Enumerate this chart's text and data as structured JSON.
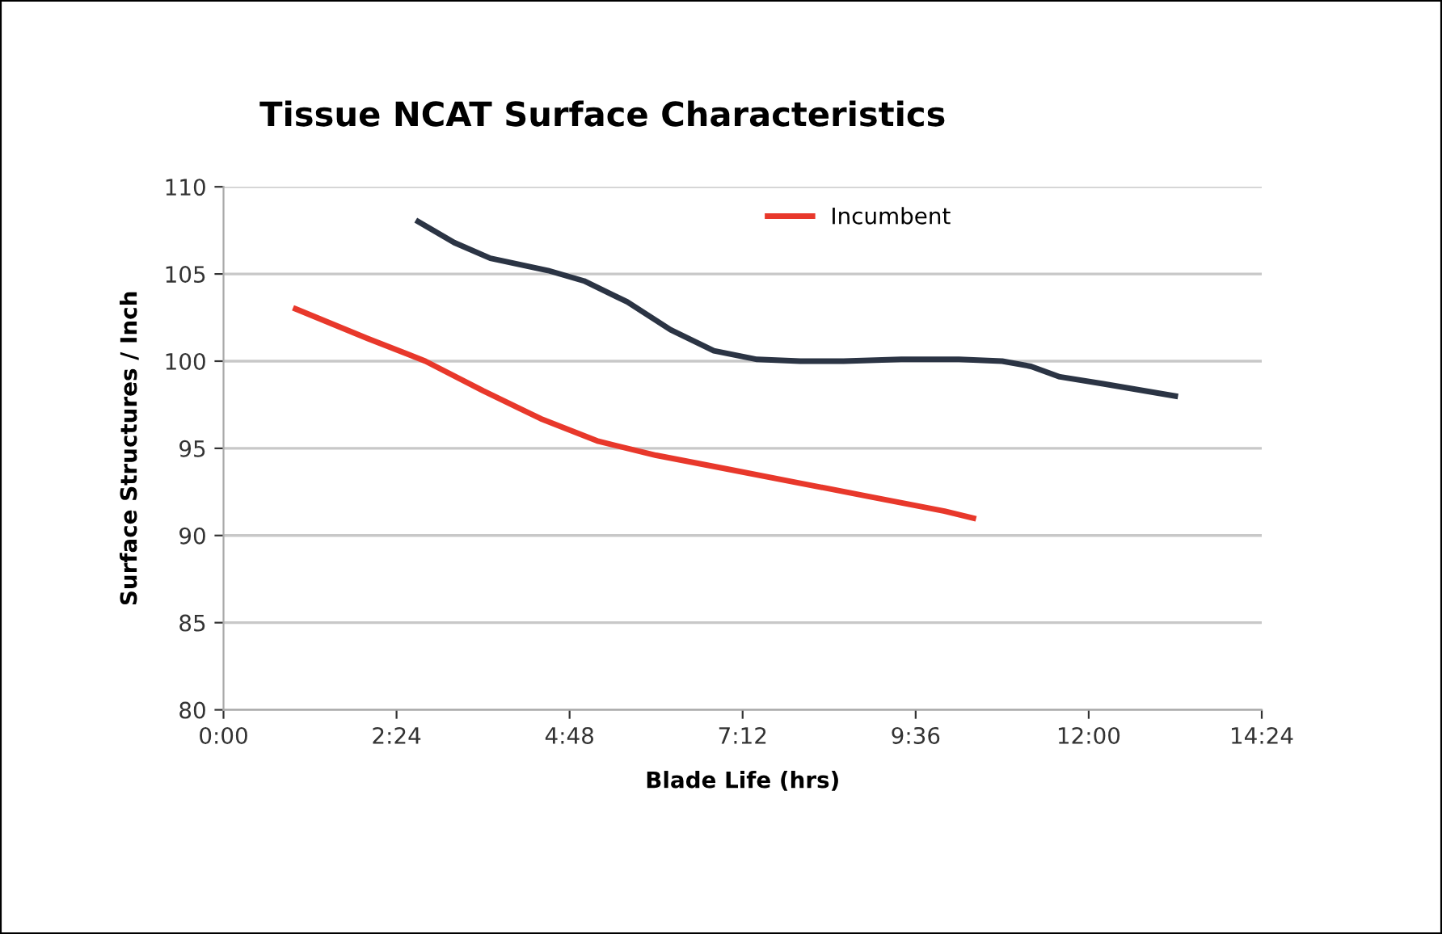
{
  "chart_data": {
    "type": "line",
    "title": "Tissue NCAT Surface Characteristics",
    "xlabel": "Blade Life (hrs)",
    "ylabel": "Surface Structures / Inch",
    "xlim": [
      0,
      14.4
    ],
    "xticks": [
      {
        "value": 0,
        "label": "0:00"
      },
      {
        "value": 2.4,
        "label": "2:24"
      },
      {
        "value": 4.8,
        "label": "4:48"
      },
      {
        "value": 7.2,
        "label": "7:12"
      },
      {
        "value": 9.6,
        "label": "9:36"
      },
      {
        "value": 12,
        "label": "12:00"
      },
      {
        "value": 14.4,
        "label": "14:24"
      }
    ],
    "ylim": [
      80,
      110
    ],
    "yticks": [
      80,
      85,
      90,
      95,
      100,
      105,
      110
    ],
    "grid": "y",
    "legend": "top right",
    "marker": "none",
    "line_style": "solid",
    "series": [
      {
        "name": "Incumbent",
        "color": "#e8382b",
        "x": [
          1.0,
          2.0,
          2.8,
          3.6,
          4.4,
          5.2,
          6.0,
          7.0,
          8.0,
          9.0,
          10.0,
          10.4
        ],
        "values": [
          103,
          101.3,
          100,
          98.3,
          96.7,
          95.4,
          94.6,
          93.8,
          93,
          92.2,
          91.4,
          91
        ]
      },
      {
        "color": "#2b3444",
        "x": [
          2.7,
          3.2,
          3.7,
          4.5,
          5.0,
          5.6,
          6.2,
          6.8,
          7.4,
          8.0,
          8.6,
          9.4,
          10.2,
          10.8,
          11.2,
          11.6,
          12.2,
          13.2
        ],
        "values": [
          108,
          106.8,
          105.9,
          105.2,
          104.6,
          103.4,
          101.8,
          100.6,
          100.1,
          100,
          100,
          100.1,
          100.1,
          100,
          99.7,
          99.1,
          98.7,
          98
        ]
      }
    ]
  }
}
